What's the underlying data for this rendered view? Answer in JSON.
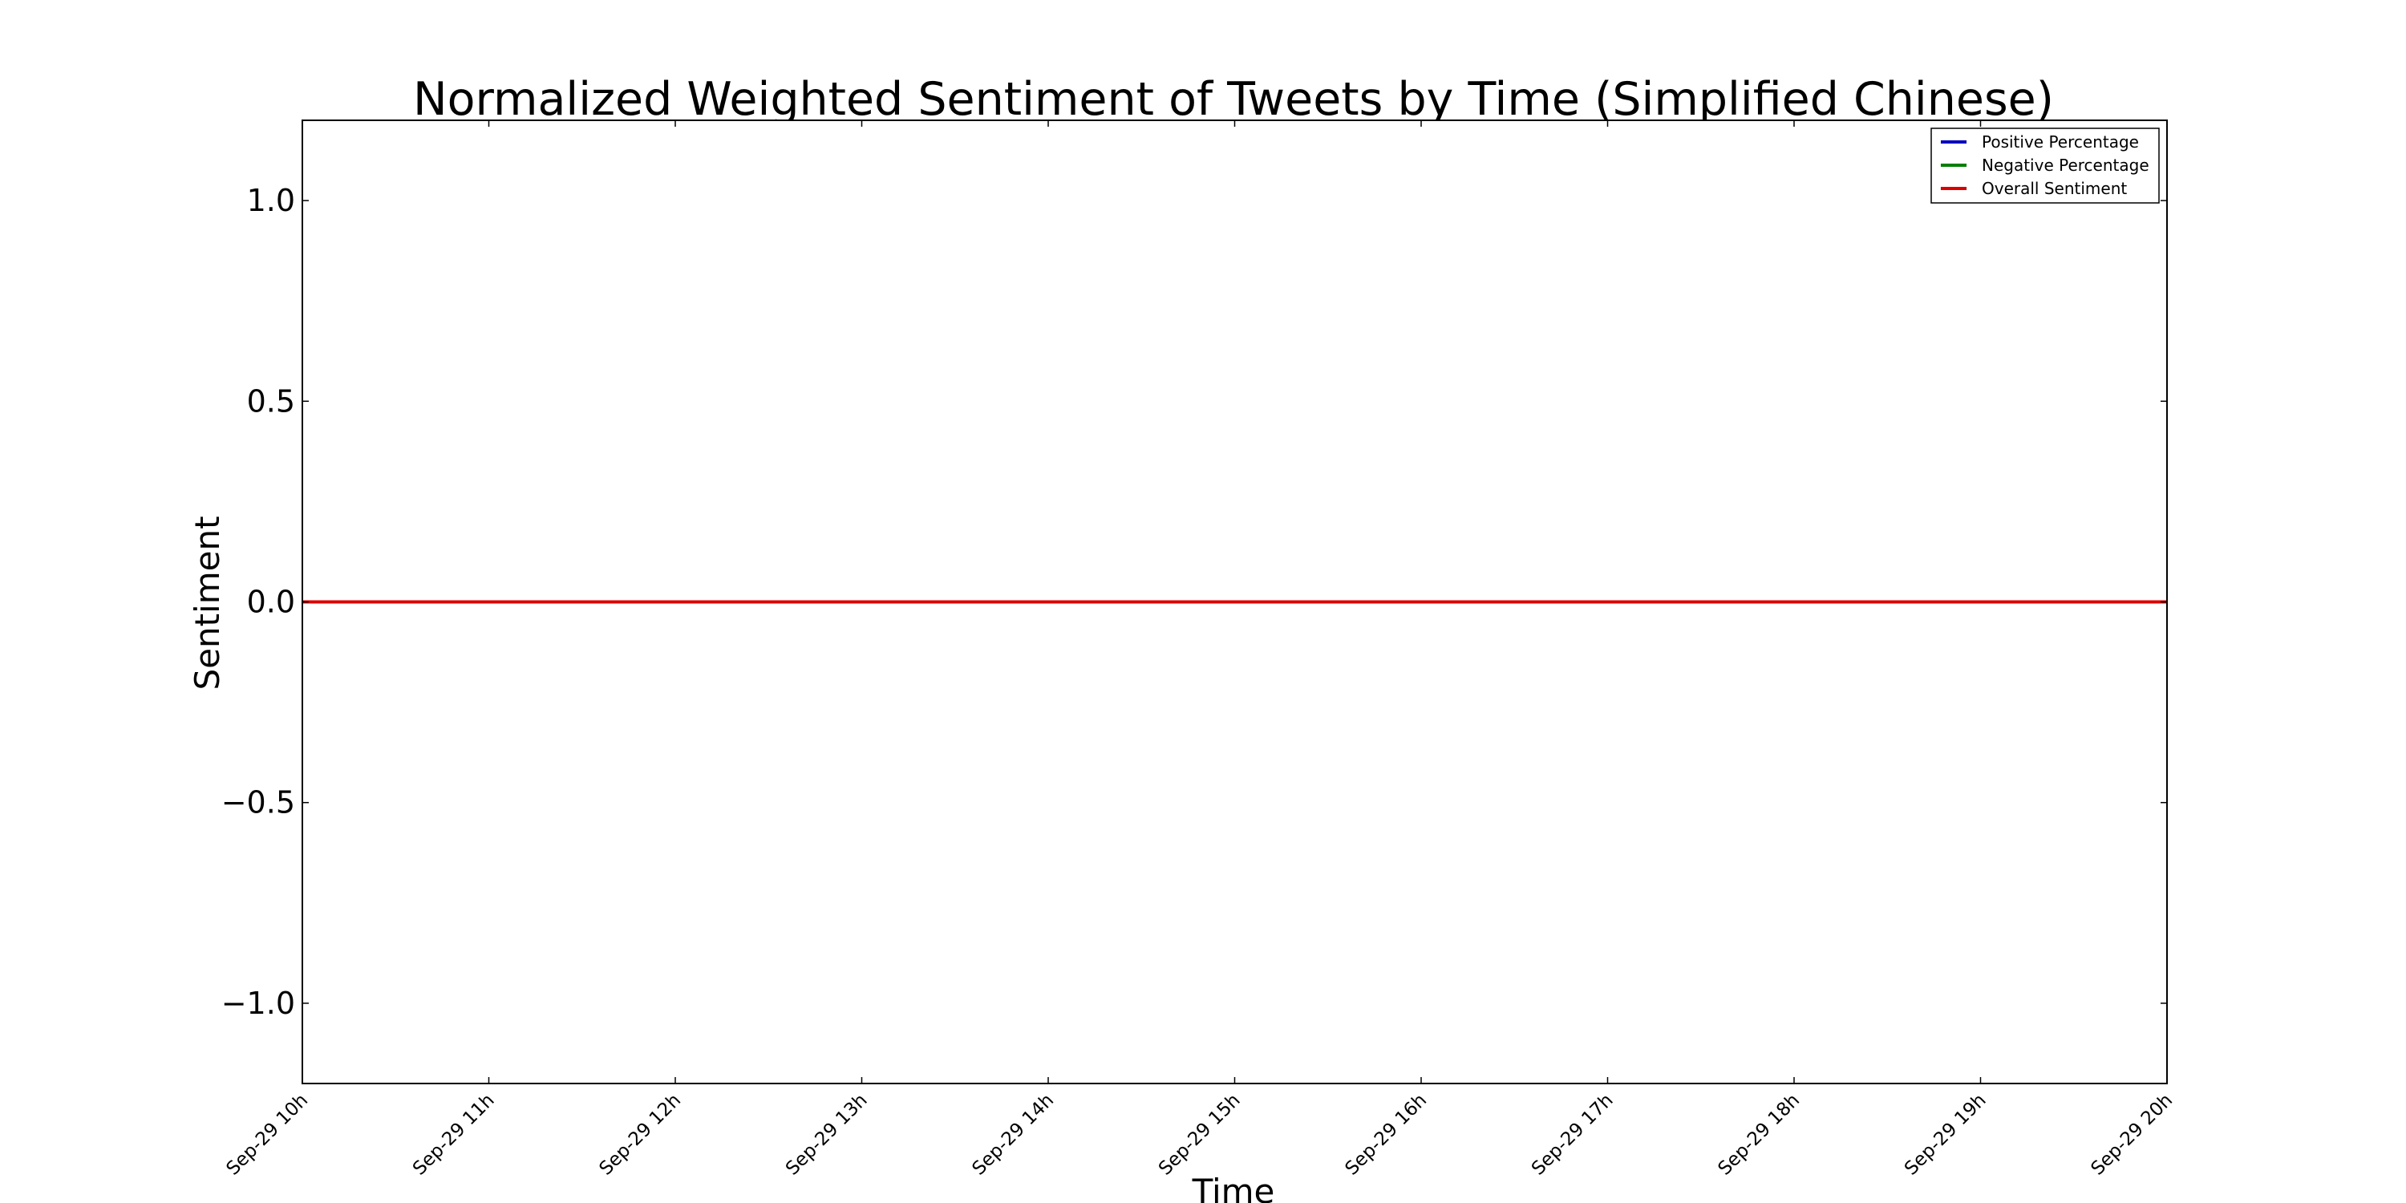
{
  "chart_data": {
    "type": "line",
    "title": "Normalized Weighted Sentiment of Tweets by Time (Simplified Chinese)",
    "xlabel": "Time",
    "ylabel": "Sentiment",
    "x_tick_labels": [
      "Sep-29 10h",
      "Sep-29 11h",
      "Sep-29 12h",
      "Sep-29 13h",
      "Sep-29 14h",
      "Sep-29 15h",
      "Sep-29 16h",
      "Sep-29 17h",
      "Sep-29 18h",
      "Sep-29 19h",
      "Sep-29 20h"
    ],
    "x_hours": [
      10,
      11,
      12,
      13,
      14,
      15,
      16,
      17,
      18,
      19,
      20
    ],
    "xlim": [
      10,
      20
    ],
    "y_ticks": [
      1.0,
      0.5,
      0.0,
      -0.5,
      -1.0
    ],
    "y_tick_labels": [
      "1.0",
      "0.5",
      "0.0",
      "−0.5",
      "−1.0"
    ],
    "ylim": [
      -1.2,
      1.2
    ],
    "grid": false,
    "legend_position": "top-right",
    "series": [
      {
        "name": "Positive Percentage",
        "color": "#0000bf",
        "x": [
          10,
          20
        ],
        "values": [
          0,
          0
        ]
      },
      {
        "name": "Negative Percentage",
        "color": "#007f00",
        "x": [
          10,
          20
        ],
        "values": [
          0,
          0
        ]
      },
      {
        "name": "Overall Sentiment",
        "color": "#dd0000",
        "x": [
          10,
          20
        ],
        "values": [
          0,
          0
        ]
      }
    ]
  }
}
